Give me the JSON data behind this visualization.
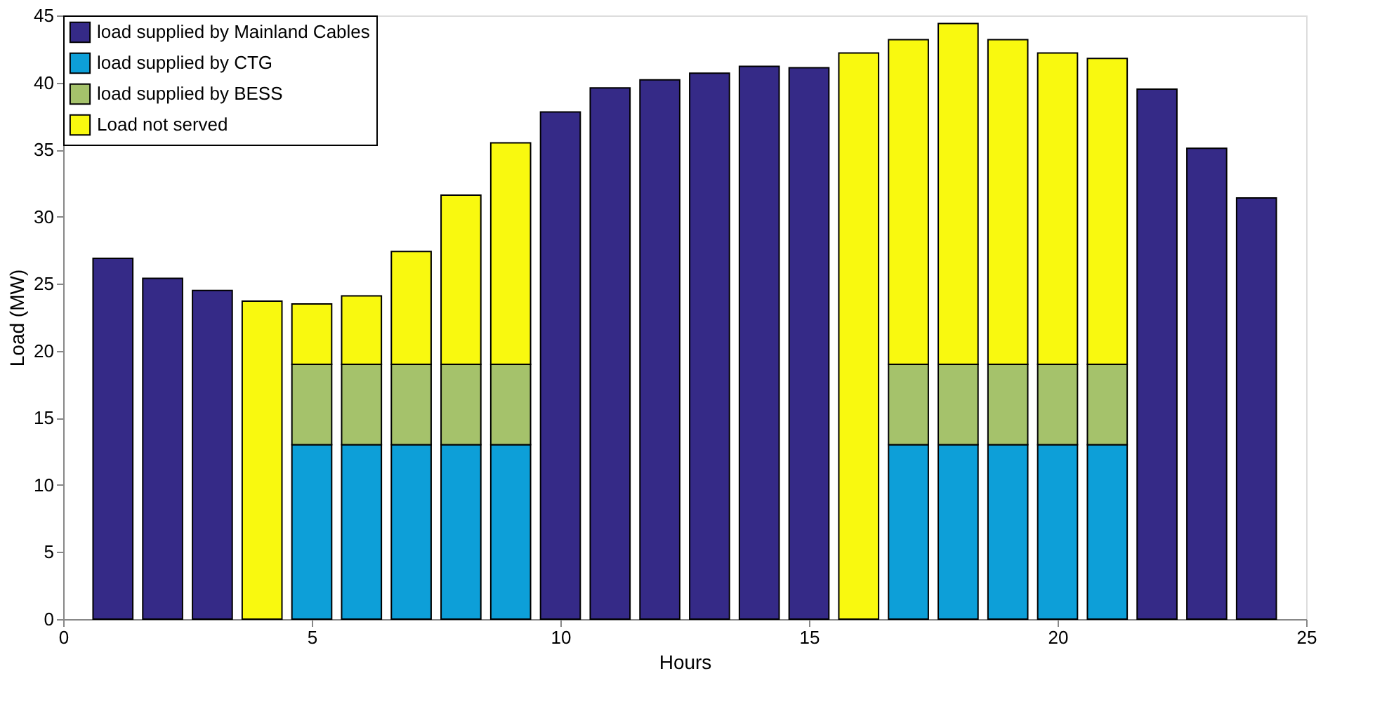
{
  "chart_data": {
    "type": "bar",
    "stacked": true,
    "xlabel": "Hours",
    "ylabel": "Load (MW)",
    "x": [
      1,
      2,
      3,
      4,
      5,
      6,
      7,
      8,
      9,
      10,
      11,
      12,
      13,
      14,
      15,
      16,
      17,
      18,
      19,
      20,
      21,
      22,
      23,
      24
    ],
    "xlim": [
      0,
      25
    ],
    "xticks": [
      0,
      5,
      10,
      15,
      20,
      25
    ],
    "ylim": [
      0,
      45
    ],
    "yticks": [
      0,
      5,
      10,
      15,
      20,
      25,
      30,
      35,
      40,
      45
    ],
    "grid": false,
    "legend": "top left",
    "series": [
      {
        "name": "load supplied by Mainland Cables",
        "color": "#352a87",
        "values": [
          26.9,
          25.4,
          24.5,
          null,
          null,
          null,
          null,
          null,
          null,
          37.8,
          39.6,
          40.2,
          40.7,
          41.2,
          41.1,
          null,
          null,
          null,
          null,
          null,
          null,
          39.5,
          35.1,
          31.4
        ]
      },
      {
        "name": "load supplied by CTG",
        "color": "#0d9fd8",
        "values": [
          null,
          null,
          null,
          null,
          13,
          13,
          13,
          13,
          13,
          null,
          null,
          null,
          null,
          null,
          null,
          null,
          13,
          13,
          13,
          13,
          13,
          null,
          null,
          null
        ]
      },
      {
        "name": "load supplied by BESS",
        "color": "#a5c26b",
        "values": [
          null,
          null,
          null,
          null,
          6,
          6,
          6,
          6,
          6,
          null,
          null,
          null,
          null,
          null,
          null,
          null,
          6,
          6,
          6,
          6,
          6,
          null,
          null,
          null
        ]
      },
      {
        "name": "Load not served",
        "color": "#f9f90f",
        "values": [
          null,
          null,
          null,
          23.7,
          4.5,
          5.1,
          8.4,
          12.6,
          16.5,
          null,
          null,
          null,
          null,
          null,
          null,
          42.2,
          24.2,
          25.4,
          24.2,
          23.2,
          22.8,
          null,
          null,
          null
        ]
      }
    ]
  }
}
